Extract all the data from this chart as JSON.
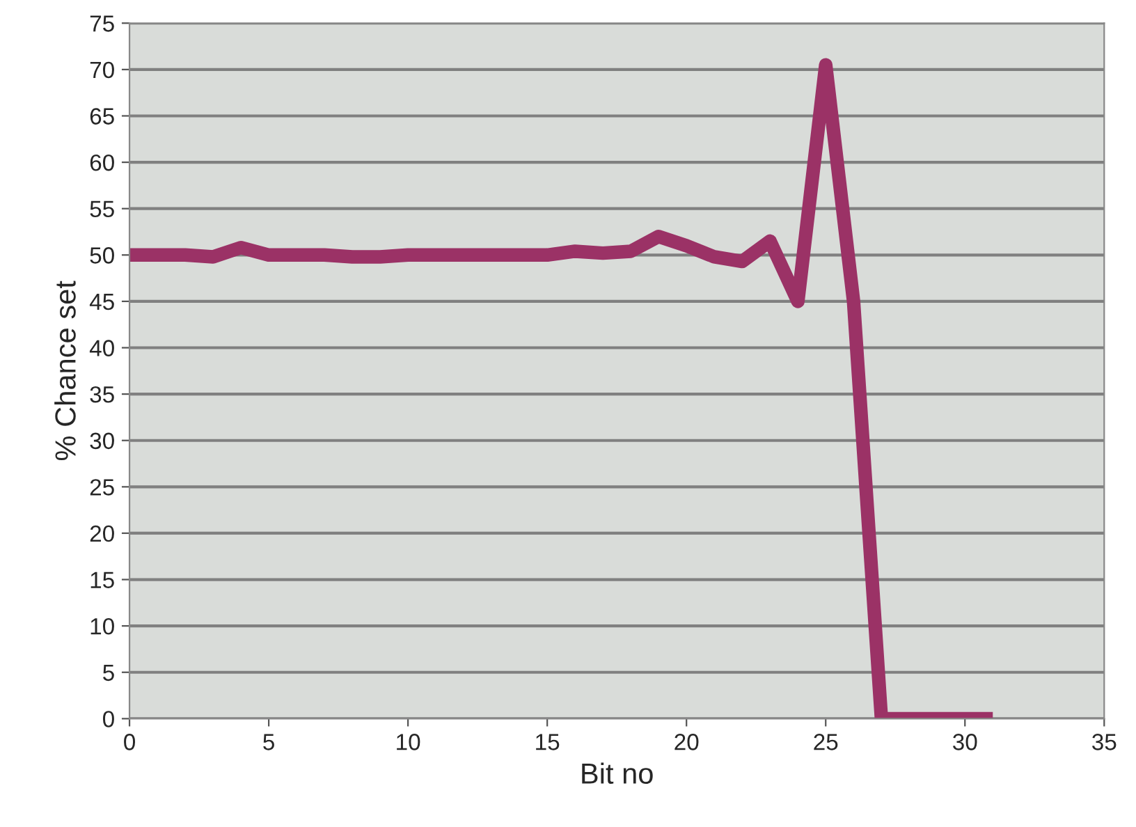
{
  "chart_data": {
    "type": "line",
    "xlabel": "Bit no",
    "ylabel": "% Chance set",
    "x": [
      0,
      1,
      2,
      3,
      4,
      5,
      6,
      7,
      8,
      9,
      10,
      11,
      12,
      13,
      14,
      15,
      16,
      17,
      18,
      19,
      20,
      21,
      22,
      23,
      24,
      25,
      26,
      27,
      28,
      29,
      30,
      31
    ],
    "series": [
      {
        "color": "#9b3266",
        "values": [
          50,
          50,
          50,
          49.8,
          50.8,
          50,
          50,
          50,
          49.8,
          49.8,
          50,
          50,
          50,
          50,
          50,
          50,
          50.4,
          50.2,
          50.4,
          52,
          51,
          49.8,
          49.3,
          51.5,
          45,
          70.5,
          45,
          0,
          0,
          0,
          0,
          0
        ]
      }
    ],
    "xlim": [
      0,
      35
    ],
    "xticks": [
      0,
      5,
      10,
      15,
      20,
      25,
      30,
      35
    ],
    "ylim": [
      0,
      75
    ],
    "yticks": [
      0,
      5,
      10,
      15,
      20,
      25,
      30,
      35,
      40,
      45,
      50,
      55,
      60,
      65,
      70,
      75
    ],
    "grid": "y",
    "marker": "none",
    "line_style": "solid",
    "legend": false
  }
}
